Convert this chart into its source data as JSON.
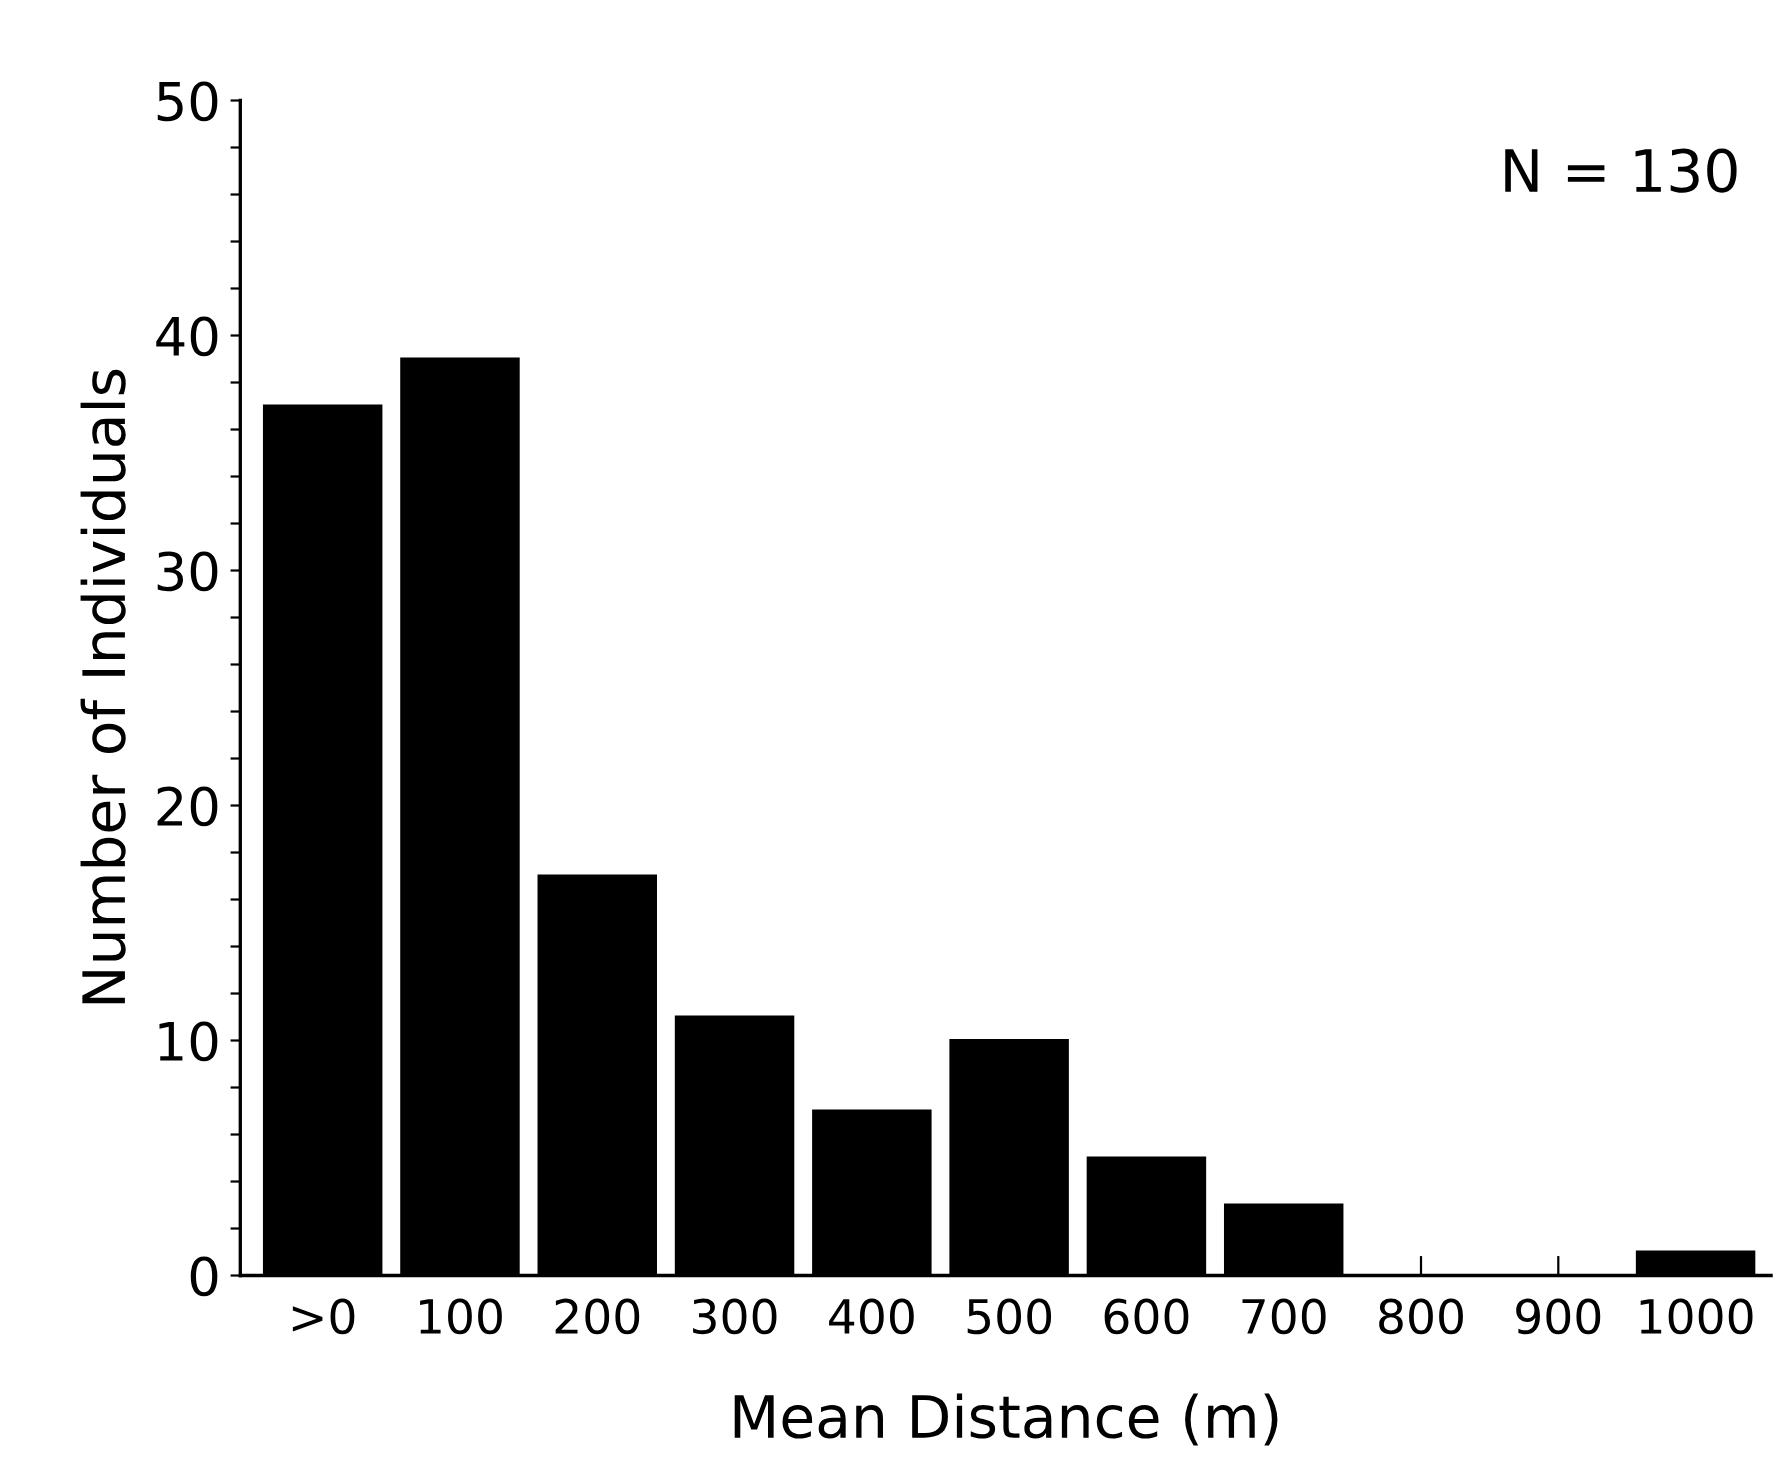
{
  "chart_data": {
    "type": "bar",
    "xlabel": "Mean Distance (m)",
    "ylabel": "Number of Individuals",
    "categories": [
      ">0",
      "100",
      "200",
      "300",
      "400",
      "500",
      "600",
      "700",
      "800",
      "900",
      "1000"
    ],
    "values": [
      37,
      39,
      17,
      11,
      7,
      10,
      5,
      3,
      0,
      0,
      1
    ],
    "color": "#000000",
    "ylim": [
      0,
      50
    ],
    "yticks": [
      0,
      {
        "value": 2,
        "label": null
      },
      {
        "value": 4,
        "label": null
      },
      {
        "value": 6,
        "label": null
      },
      {
        "value": 8,
        "label": null
      },
      10,
      {
        "value": 12,
        "label": null
      },
      {
        "value": 14,
        "label": null
      },
      {
        "value": 16,
        "label": null
      },
      {
        "value": 18,
        "label": null
      },
      20,
      {
        "value": 22,
        "label": null
      },
      {
        "value": 24,
        "label": null
      },
      {
        "value": 26,
        "label": null
      },
      {
        "value": 28,
        "label": null
      },
      30,
      {
        "value": 32,
        "label": null
      },
      {
        "value": 34,
        "label": null
      },
      {
        "value": 36,
        "label": null
      },
      {
        "value": 38,
        "label": null
      },
      40,
      {
        "value": 42,
        "label": null
      },
      {
        "value": 44,
        "label": null
      },
      {
        "value": 46,
        "label": null
      },
      {
        "value": 48,
        "label": null
      },
      50
    ],
    "annotations": [
      "N = 130"
    ],
    "grid": false,
    "legend": false
  }
}
